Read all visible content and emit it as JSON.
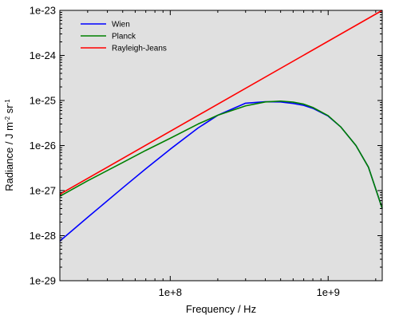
{
  "chart_data": {
    "type": "line",
    "xlabel": "Frequency / Hz",
    "ylabel": {
      "prefix": "Radiance / J m",
      "sup1": "-2",
      "middle": " sr",
      "sup2": "-1"
    },
    "x_scale": "log",
    "y_scale": "log",
    "xlim": [
      20000000,
      2200000000
    ],
    "ylim": [
      1e-29,
      1e-23
    ],
    "x_ticks": [
      {
        "value": 100000000,
        "label": "1e+8"
      },
      {
        "value": 1000000000,
        "label": "1e+9"
      }
    ],
    "y_ticks": [
      {
        "value": 1e-29,
        "label": "1e-29"
      },
      {
        "value": 1e-28,
        "label": "1e-28"
      },
      {
        "value": 1e-27,
        "label": "1e-27"
      },
      {
        "value": 1e-26,
        "label": "1e-26"
      },
      {
        "value": 1e-25,
        "label": "1e-25"
      },
      {
        "value": 1e-24,
        "label": "1e-24"
      },
      {
        "value": 1e-23,
        "label": "1e-23"
      }
    ],
    "grid": false,
    "legend_position": "top-left",
    "plot_background": "#e0e0e0",
    "series": [
      {
        "name": "Wien",
        "color": "#0000ff",
        "x": [
          20000000.0,
          30000000.0,
          50000000.0,
          70000000.0,
          100000000.0,
          150000000.0,
          200000000.0,
          300000000.0,
          400000000.0,
          500000000.0,
          600000000.0,
          700000000.0,
          800000000.0,
          1000000000.0,
          1200000000.0,
          1500000000.0,
          1800000000.0,
          2200000000.0
        ],
        "y": [
          7.6e-29,
          2.55e-28,
          1.15e-27,
          3.05e-27,
          8.3e-27,
          2.45e-26,
          4.7e-26,
          8.7e-26,
          9.4e-26,
          9.3e-26,
          8.6e-26,
          7.8e-26,
          6.7e-26,
          4.5e-26,
          2.6e-26,
          1e-26,
          3.3e-27,
          4e-28
        ]
      },
      {
        "name": "Planck",
        "color": "#008000",
        "x": [
          20000000.0,
          30000000.0,
          50000000.0,
          70000000.0,
          100000000.0,
          150000000.0,
          200000000.0,
          300000000.0,
          400000000.0,
          500000000.0,
          600000000.0,
          700000000.0,
          800000000.0,
          1000000000.0,
          1200000000.0,
          1500000000.0,
          1800000000.0,
          2200000000.0
        ],
        "y": [
          7.5e-28,
          1.65e-27,
          4.2e-27,
          7.8e-27,
          1.45e-26,
          3e-26,
          4.7e-26,
          7.6e-26,
          9.3e-26,
          9.7e-26,
          9.2e-26,
          8.3e-26,
          7e-26,
          4.6e-26,
          2.6e-26,
          1e-26,
          3.3e-27,
          4e-28
        ]
      },
      {
        "name": "Rayleigh-Jeans",
        "color": "#ff0000",
        "x": [
          20000000.0,
          2200000000.0
        ],
        "y": [
          8.3e-28,
          1e-23
        ]
      }
    ]
  }
}
